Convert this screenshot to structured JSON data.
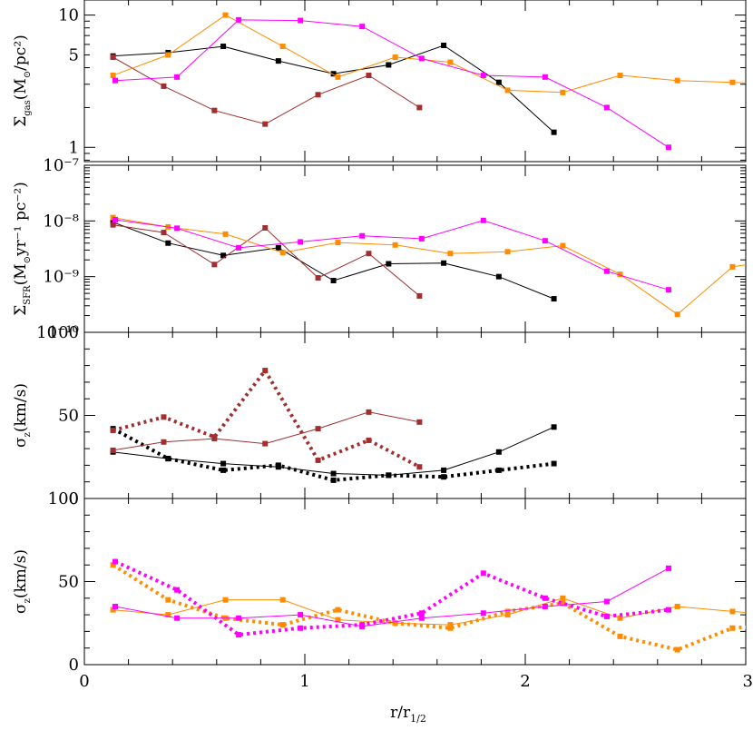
{
  "colors": {
    "black": "#000000",
    "brown": "#a03030",
    "orange": "#ff8c00",
    "magenta": "#ff00ff"
  },
  "xaxis": {
    "label": "r/r",
    "label_sub": "1/2",
    "ticks": [
      "0",
      "1",
      "2",
      "3"
    ]
  },
  "chart_data": [
    {
      "type": "line",
      "scale": "log",
      "ylim": [
        0.78,
        13
      ],
      "ylabel": {
        "sym": "Σ",
        "sub": "gas",
        "rest": "(M",
        "sun": "⊙",
        "tail": "/pc²)"
      },
      "yticks": [
        "1",
        "5",
        "10"
      ],
      "series": [
        {
          "color": "black",
          "style": "solid",
          "x": [
            0.13,
            0.38,
            0.63,
            0.88,
            1.13,
            1.38,
            1.63,
            1.88,
            2.13
          ],
          "y": [
            4.9,
            5.2,
            5.8,
            4.5,
            3.6,
            4.2,
            5.9,
            3.1,
            1.3
          ]
        },
        {
          "color": "brown",
          "style": "solid",
          "x": [
            0.13,
            0.36,
            0.59,
            0.82,
            1.06,
            1.29,
            1.52
          ],
          "y": [
            4.8,
            2.9,
            1.9,
            1.5,
            2.5,
            3.5,
            2.0
          ]
        },
        {
          "color": "orange",
          "style": "solid",
          "x": [
            0.13,
            0.38,
            0.64,
            0.9,
            1.15,
            1.41,
            1.66,
            1.92,
            2.17,
            2.43,
            2.69,
            2.94,
            3.05
          ],
          "y": [
            3.5,
            5.0,
            10.0,
            5.8,
            3.4,
            4.8,
            4.4,
            2.7,
            2.6,
            3.5,
            3.2,
            3.1,
            3.05
          ]
        },
        {
          "color": "magenta",
          "style": "solid",
          "x": [
            0.14,
            0.42,
            0.7,
            0.98,
            1.26,
            1.53,
            1.81,
            2.09,
            2.37,
            2.65
          ],
          "y": [
            3.2,
            3.4,
            9.2,
            9.1,
            8.2,
            4.7,
            3.5,
            3.4,
            2.0,
            1.0
          ]
        }
      ]
    },
    {
      "type": "line",
      "scale": "log",
      "ylim": [
        1e-10,
        1e-07
      ],
      "ylabel": {
        "sym": "Σ",
        "sub": "SFR",
        "rest": "(M",
        "sun": "⊙",
        "tail": "yr⁻¹ pc⁻²)"
      },
      "yticks": [
        "10⁻¹⁰",
        "10⁻⁹",
        "10⁻⁸",
        "10⁻⁷"
      ],
      "series": [
        {
          "color": "black",
          "style": "solid",
          "x": [
            0.13,
            0.38,
            0.63,
            0.88,
            1.13,
            1.38,
            1.63,
            1.88,
            2.13
          ],
          "y": [
            9.5e-09,
            4e-09,
            2.4e-09,
            3.3e-09,
            8.5e-10,
            1.7e-09,
            1.75e-09,
            1e-09,
            4e-10
          ]
        },
        {
          "color": "brown",
          "style": "solid",
          "x": [
            0.13,
            0.36,
            0.59,
            0.82,
            1.06,
            1.29,
            1.52
          ],
          "y": [
            8.5e-09,
            6.2e-09,
            1.65e-09,
            7.5e-09,
            9.5e-10,
            2.6e-09,
            4.5e-10
          ]
        },
        {
          "color": "orange",
          "style": "solid",
          "x": [
            0.13,
            0.38,
            0.64,
            0.9,
            1.15,
            1.41,
            1.66,
            1.92,
            2.17,
            2.43,
            2.69,
            2.94,
            3.05
          ],
          "y": [
            1.15e-08,
            7.8e-09,
            5.8e-09,
            2.7e-09,
            4.1e-09,
            3.7e-09,
            2.6e-09,
            2.8e-09,
            3.6e-09,
            1.1e-09,
            2.1e-10,
            1.5e-09,
            1.75e-09
          ]
        },
        {
          "color": "magenta",
          "style": "solid",
          "x": [
            0.14,
            0.42,
            0.7,
            0.98,
            1.26,
            1.53,
            1.81,
            2.09,
            2.37,
            2.65
          ],
          "y": [
            1.05e-08,
            7.4e-09,
            3.3e-09,
            4.2e-09,
            5.4e-09,
            4.8e-09,
            1.02e-08,
            4.4e-09,
            1.25e-09,
            5.8e-10
          ]
        }
      ]
    },
    {
      "type": "line",
      "scale": "linear",
      "ylim": [
        0,
        100
      ],
      "ylabel": {
        "sym": "σ",
        "sub": "z",
        "rest": "(km/s)",
        "sun": "",
        "tail": ""
      },
      "yticks": [
        "0",
        "50",
        "100"
      ],
      "series": [
        {
          "color": "black",
          "style": "solid",
          "x": [
            0.13,
            0.38,
            0.63,
            0.88,
            1.13,
            1.38,
            1.63,
            1.88,
            2.13
          ],
          "y": [
            28,
            24,
            21,
            19,
            15,
            14,
            17,
            28,
            43
          ]
        },
        {
          "color": "black",
          "style": "dotted",
          "x": [
            0.13,
            0.38,
            0.63,
            0.88,
            1.13,
            1.38,
            1.63,
            1.88,
            2.13
          ],
          "y": [
            42,
            24,
            17,
            20,
            11,
            14,
            13,
            17,
            21
          ]
        },
        {
          "color": "brown",
          "style": "solid",
          "x": [
            0.13,
            0.36,
            0.59,
            0.82,
            1.06,
            1.29,
            1.52
          ],
          "y": [
            29,
            34,
            36,
            33,
            42,
            52,
            46
          ]
        },
        {
          "color": "brown",
          "style": "dotted",
          "x": [
            0.13,
            0.36,
            0.59,
            0.82,
            1.06,
            1.29,
            1.52
          ],
          "y": [
            41,
            49,
            37,
            77,
            23,
            35,
            19
          ]
        }
      ]
    },
    {
      "type": "line",
      "scale": "linear",
      "ylim": [
        0,
        100
      ],
      "ylabel": {
        "sym": "σ",
        "sub": "z",
        "rest": "(km/s)",
        "sun": "",
        "tail": ""
      },
      "yticks": [
        "0",
        "50",
        "100"
      ],
      "series": [
        {
          "color": "orange",
          "style": "solid",
          "x": [
            0.13,
            0.38,
            0.64,
            0.9,
            1.15,
            1.41,
            1.66,
            1.92,
            2.17,
            2.43,
            2.69,
            2.94,
            3.05
          ],
          "y": [
            33,
            30,
            39,
            39,
            27,
            25,
            24,
            30,
            40,
            28,
            35,
            32,
            31
          ]
        },
        {
          "color": "orange",
          "style": "dotted",
          "x": [
            0.13,
            0.38,
            0.64,
            0.9,
            1.15,
            1.41,
            1.66,
            1.92,
            2.17,
            2.43,
            2.69,
            2.94,
            3.05
          ],
          "y": [
            60,
            39,
            28,
            24,
            33,
            25,
            22,
            32,
            37,
            17,
            9,
            22,
            23
          ]
        },
        {
          "color": "magenta",
          "style": "solid",
          "x": [
            0.14,
            0.42,
            0.7,
            0.98,
            1.26,
            1.53,
            1.81,
            2.09,
            2.37,
            2.65
          ],
          "y": [
            35,
            28,
            28,
            30,
            23,
            28,
            31,
            35,
            38,
            58
          ]
        },
        {
          "color": "magenta",
          "style": "dotted",
          "x": [
            0.14,
            0.42,
            0.7,
            0.98,
            1.26,
            1.53,
            1.81,
            2.09,
            2.37,
            2.65
          ],
          "y": [
            62,
            45,
            18,
            22,
            24,
            31,
            55,
            40,
            29,
            33
          ]
        }
      ]
    }
  ]
}
